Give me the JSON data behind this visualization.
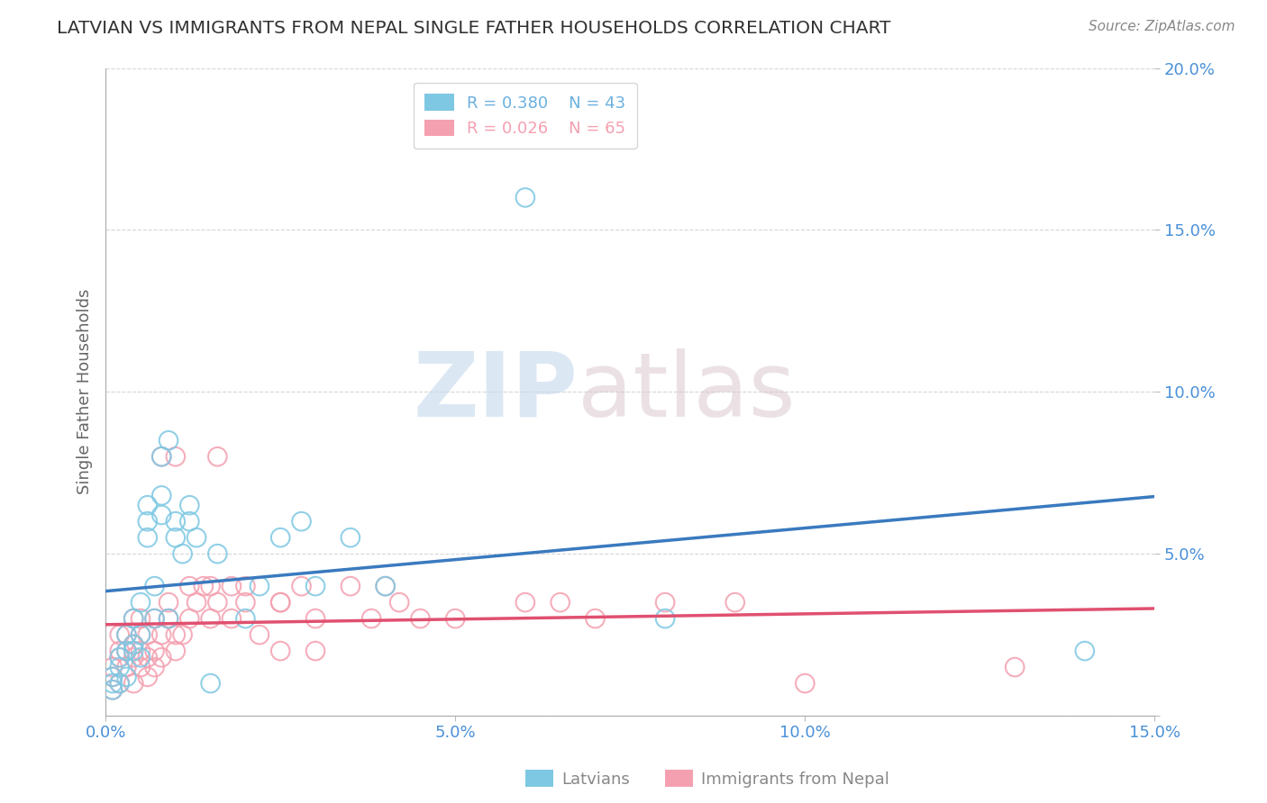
{
  "title": "LATVIAN VS IMMIGRANTS FROM NEPAL SINGLE FATHER HOUSEHOLDS CORRELATION CHART",
  "source_text": "Source: ZipAtlas.com",
  "ylabel": "Single Father Households",
  "watermark_zip": "ZIP",
  "watermark_atlas": "atlas",
  "xlim": [
    0.0,
    0.15
  ],
  "ylim": [
    0.0,
    0.2
  ],
  "xticks": [
    0.0,
    0.05,
    0.1,
    0.15
  ],
  "yticks": [
    0.0,
    0.05,
    0.1,
    0.15,
    0.2
  ],
  "xticklabels": [
    "0.0%",
    "5.0%",
    "10.0%",
    "15.0%"
  ],
  "yticklabels": [
    "",
    "5.0%",
    "10.0%",
    "15.0%",
    "20.0%"
  ],
  "legend_entries": [
    {
      "label_r": "R = 0.380",
      "label_n": "N = 43",
      "color": "#6ab0e0"
    },
    {
      "label_r": "R = 0.026",
      "label_n": "N = 65",
      "color": "#f4a0b0"
    }
  ],
  "latvian_color": "#7ec8e3",
  "nepal_color": "#f4a0b0",
  "trend_latvian_color": "#3a7abf",
  "trend_nepal_color": "#e05070",
  "latvian_scatter": [
    [
      0.001,
      0.008
    ],
    [
      0.001,
      0.01
    ],
    [
      0.001,
      0.012
    ],
    [
      0.002,
      0.01
    ],
    [
      0.002,
      0.015
    ],
    [
      0.002,
      0.018
    ],
    [
      0.003,
      0.02
    ],
    [
      0.003,
      0.025
    ],
    [
      0.003,
      0.012
    ],
    [
      0.004,
      0.02
    ],
    [
      0.004,
      0.022
    ],
    [
      0.004,
      0.03
    ],
    [
      0.005,
      0.025
    ],
    [
      0.005,
      0.018
    ],
    [
      0.005,
      0.035
    ],
    [
      0.006,
      0.055
    ],
    [
      0.006,
      0.06
    ],
    [
      0.006,
      0.065
    ],
    [
      0.007,
      0.03
    ],
    [
      0.007,
      0.04
    ],
    [
      0.008,
      0.062
    ],
    [
      0.008,
      0.068
    ],
    [
      0.008,
      0.08
    ],
    [
      0.009,
      0.085
    ],
    [
      0.009,
      0.03
    ],
    [
      0.01,
      0.06
    ],
    [
      0.01,
      0.055
    ],
    [
      0.011,
      0.05
    ],
    [
      0.012,
      0.06
    ],
    [
      0.012,
      0.065
    ],
    [
      0.013,
      0.055
    ],
    [
      0.015,
      0.01
    ],
    [
      0.016,
      0.05
    ],
    [
      0.02,
      0.03
    ],
    [
      0.022,
      0.04
    ],
    [
      0.025,
      0.055
    ],
    [
      0.028,
      0.06
    ],
    [
      0.03,
      0.04
    ],
    [
      0.035,
      0.055
    ],
    [
      0.04,
      0.04
    ],
    [
      0.06,
      0.16
    ],
    [
      0.08,
      0.03
    ],
    [
      0.14,
      0.02
    ]
  ],
  "nepal_scatter": [
    [
      0.001,
      0.008
    ],
    [
      0.001,
      0.012
    ],
    [
      0.001,
      0.015
    ],
    [
      0.002,
      0.01
    ],
    [
      0.002,
      0.018
    ],
    [
      0.002,
      0.02
    ],
    [
      0.002,
      0.025
    ],
    [
      0.003,
      0.015
    ],
    [
      0.003,
      0.02
    ],
    [
      0.003,
      0.025
    ],
    [
      0.004,
      0.01
    ],
    [
      0.004,
      0.018
    ],
    [
      0.004,
      0.022
    ],
    [
      0.004,
      0.03
    ],
    [
      0.005,
      0.015
    ],
    [
      0.005,
      0.02
    ],
    [
      0.005,
      0.025
    ],
    [
      0.005,
      0.03
    ],
    [
      0.006,
      0.012
    ],
    [
      0.006,
      0.018
    ],
    [
      0.006,
      0.025
    ],
    [
      0.007,
      0.015
    ],
    [
      0.007,
      0.02
    ],
    [
      0.007,
      0.03
    ],
    [
      0.008,
      0.018
    ],
    [
      0.008,
      0.025
    ],
    [
      0.008,
      0.08
    ],
    [
      0.009,
      0.03
    ],
    [
      0.009,
      0.035
    ],
    [
      0.01,
      0.02
    ],
    [
      0.01,
      0.025
    ],
    [
      0.01,
      0.08
    ],
    [
      0.011,
      0.025
    ],
    [
      0.012,
      0.03
    ],
    [
      0.012,
      0.04
    ],
    [
      0.013,
      0.035
    ],
    [
      0.014,
      0.04
    ],
    [
      0.015,
      0.03
    ],
    [
      0.015,
      0.04
    ],
    [
      0.016,
      0.08
    ],
    [
      0.016,
      0.035
    ],
    [
      0.018,
      0.04
    ],
    [
      0.018,
      0.03
    ],
    [
      0.02,
      0.04
    ],
    [
      0.02,
      0.035
    ],
    [
      0.022,
      0.025
    ],
    [
      0.025,
      0.035
    ],
    [
      0.025,
      0.02
    ],
    [
      0.025,
      0.035
    ],
    [
      0.028,
      0.04
    ],
    [
      0.03,
      0.03
    ],
    [
      0.03,
      0.02
    ],
    [
      0.035,
      0.04
    ],
    [
      0.038,
      0.03
    ],
    [
      0.04,
      0.04
    ],
    [
      0.042,
      0.035
    ],
    [
      0.045,
      0.03
    ],
    [
      0.05,
      0.03
    ],
    [
      0.06,
      0.035
    ],
    [
      0.065,
      0.035
    ],
    [
      0.07,
      0.03
    ],
    [
      0.08,
      0.035
    ],
    [
      0.09,
      0.035
    ],
    [
      0.1,
      0.01
    ],
    [
      0.13,
      0.015
    ]
  ],
  "background_color": "#ffffff",
  "grid_color": "#cccccc",
  "title_color": "#333333",
  "tick_color": "#4a90d9",
  "axis_label_color": "#666666"
}
